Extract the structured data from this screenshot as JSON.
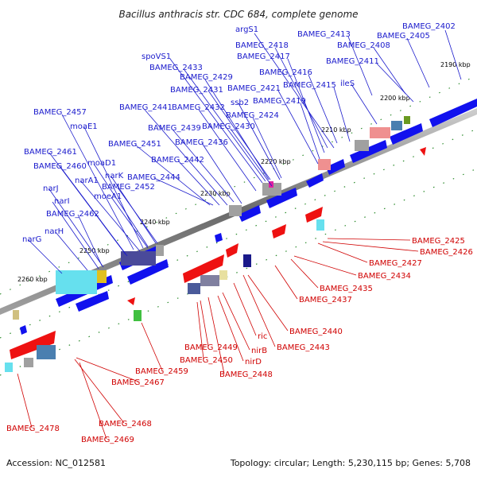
{
  "title": "Bacillus anthracis str. CDC 684, complete genome",
  "footer": {
    "accession": "Accession: NC_012581",
    "topology": "Topology: circular; Length: 5,230,115 bp; Genes: 5,708"
  },
  "colors": {
    "forward_label": "#1a1acc",
    "reverse_label": "#d00000",
    "forward_gene": "#0000ee",
    "reverse_gene": "#ee0000",
    "backbone": "#888888",
    "tick": "#2a8a2a"
  },
  "ticks": [
    "2190 kbp",
    "2200 kbp",
    "2210 kbp",
    "2220 kbp",
    "2230 kbp",
    "2240 kbp",
    "2250 kbp",
    "2260 kbp"
  ],
  "forward_labels": [
    "argS1",
    "BAMEG_2413",
    "BAMEG_2402",
    "BAMEG_2418",
    "BAMEG_2408",
    "BAMEG_2405",
    "spoVS1",
    "BAMEG_2417",
    "BAMEG_2411",
    "BAMEG_2433",
    "BAMEG_2416",
    "BAMEG_2429",
    "BAMEG_2421",
    "BAMEG_2415",
    "ileS",
    "BAMEG_2431",
    "ssb2",
    "BAMEG_2419",
    "BAMEG_2441",
    "BAMEG_2432",
    "BAMEG_2457",
    "BAMEG_2424",
    "BAMEG_2439",
    "BAMEG_2430",
    "moaE1",
    "BAMEG_2436",
    "BAMEG_2451",
    "BAMEG_2461",
    "BAMEG_2442",
    "moaD1",
    "BAMEG_2460",
    "narK",
    "BAMEG_2444",
    "narA1",
    "BAMEG_2452",
    "narJ",
    "moeA1",
    "narI",
    "BAMEG_2462",
    "narH",
    "narG"
  ],
  "reverse_labels": [
    "BAMEG_2425",
    "BAMEG_2426",
    "BAMEG_2427",
    "BAMEG_2434",
    "BAMEG_2435",
    "BAMEG_2437",
    "BAMEG_2440",
    "ric",
    "BAMEG_2443",
    "BAMEG_2449",
    "nirB",
    "BAMEG_2450",
    "nirD",
    "BAMEG_2448",
    "BAMEG_2459",
    "BAMEG_2467",
    "BAMEG_2468",
    "BAMEG_2478",
    "BAMEG_2469"
  ]
}
